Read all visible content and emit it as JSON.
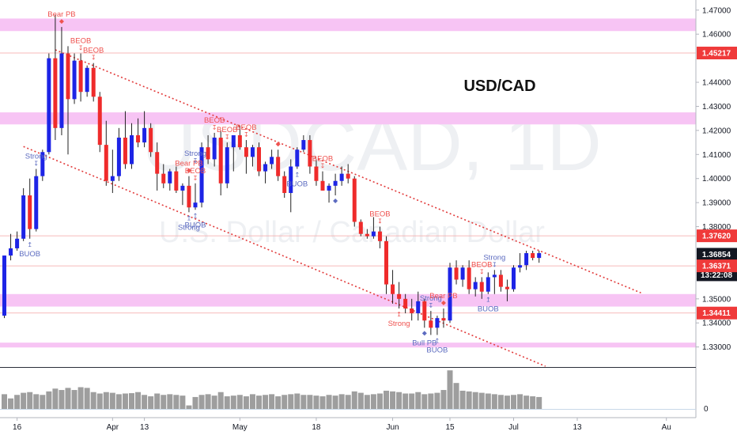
{
  "chart_data": {
    "type": "candlestick",
    "symbol_title": "USD/CAD",
    "watermark_symbol": "USDCAD, 1D",
    "watermark_name": "U.S. Dollar / Canadian Dollar",
    "ylim": [
      1.322,
      1.4742
    ],
    "y_ticks": [
      {
        "value": 1.47,
        "label": "1.47000"
      },
      {
        "value": 1.46,
        "label": "1.46000"
      },
      {
        "value": 1.44,
        "label": "1.44000"
      },
      {
        "value": 1.43,
        "label": "1.43000"
      },
      {
        "value": 1.42,
        "label": "1.42000"
      },
      {
        "value": 1.41,
        "label": "1.41000"
      },
      {
        "value": 1.4,
        "label": "1.40000"
      },
      {
        "value": 1.39,
        "label": "1.39000"
      },
      {
        "value": 1.38,
        "label": "1.38000"
      },
      {
        "value": 1.35,
        "label": "1.35000"
      },
      {
        "value": 1.34,
        "label": "1.34000"
      },
      {
        "value": 1.33,
        "label": "1.33000"
      }
    ],
    "x_ticks": [
      {
        "index": 2,
        "label": "16"
      },
      {
        "index": 17,
        "label": "Apr"
      },
      {
        "index": 22,
        "label": "13"
      },
      {
        "index": 37,
        "label": "May"
      },
      {
        "index": 49,
        "label": "18"
      },
      {
        "index": 61,
        "label": "Jun"
      },
      {
        "index": 70,
        "label": "15"
      },
      {
        "index": 80,
        "label": "Jul"
      },
      {
        "index": 90,
        "label": "13"
      },
      {
        "index": 104,
        "label": "Au"
      }
    ],
    "price_labels": [
      {
        "value": 1.45217,
        "label": "1.45217",
        "style": "red",
        "line": true
      },
      {
        "value": 1.3762,
        "label": "1.37620",
        "style": "red",
        "line": true
      },
      {
        "value": 1.36854,
        "label": "1.36854",
        "style": "black",
        "line": false
      },
      {
        "value": 1.36,
        "label": "13:22:08",
        "style": "black",
        "line": false
      },
      {
        "value": 1.36371,
        "label": "1.36371",
        "style": "red",
        "line": true
      },
      {
        "value": 1.34411,
        "label": "1.34411",
        "style": "red",
        "line": true
      }
    ],
    "zones": [
      {
        "low": 1.4613,
        "high": 1.4665
      },
      {
        "low": 1.4225,
        "high": 1.4275
      },
      {
        "low": 1.3468,
        "high": 1.352
      },
      {
        "low": 1.3298,
        "high": 1.3318
      }
    ],
    "trendlines": [
      {
        "p1": {
          "index": 8,
          "price": 1.4535
        },
        "p2": {
          "index": 100,
          "price": 1.3525
        }
      },
      {
        "p1": {
          "index": 3,
          "price": 1.4133
        },
        "p2": {
          "index": 85,
          "price": 1.322
        }
      }
    ],
    "candles": [
      {
        "o": 1.343,
        "h": 1.368,
        "l": 1.342,
        "c": 1.368
      },
      {
        "o": 1.368,
        "h": 1.377,
        "l": 1.366,
        "c": 1.371
      },
      {
        "o": 1.371,
        "h": 1.378,
        "l": 1.37,
        "c": 1.375
      },
      {
        "o": 1.375,
        "h": 1.396,
        "l": 1.374,
        "c": 1.393
      },
      {
        "o": 1.393,
        "h": 1.4,
        "l": 1.375,
        "c": 1.379
      },
      {
        "o": 1.379,
        "h": 1.404,
        "l": 1.378,
        "c": 1.401
      },
      {
        "o": 1.401,
        "h": 1.412,
        "l": 1.399,
        "c": 1.411
      },
      {
        "o": 1.411,
        "h": 1.452,
        "l": 1.41,
        "c": 1.45
      },
      {
        "o": 1.45,
        "h": 1.468,
        "l": 1.416,
        "c": 1.421
      },
      {
        "o": 1.421,
        "h": 1.463,
        "l": 1.418,
        "c": 1.452
      },
      {
        "o": 1.452,
        "h": 1.455,
        "l": 1.41,
        "c": 1.433
      },
      {
        "o": 1.433,
        "h": 1.452,
        "l": 1.431,
        "c": 1.449
      },
      {
        "o": 1.449,
        "h": 1.452,
        "l": 1.432,
        "c": 1.436
      },
      {
        "o": 1.436,
        "h": 1.447,
        "l": 1.434,
        "c": 1.446
      },
      {
        "o": 1.446,
        "h": 1.448,
        "l": 1.432,
        "c": 1.434
      },
      {
        "o": 1.434,
        "h": 1.436,
        "l": 1.411,
        "c": 1.414
      },
      {
        "o": 1.414,
        "h": 1.424,
        "l": 1.397,
        "c": 1.399
      },
      {
        "o": 1.399,
        "h": 1.412,
        "l": 1.394,
        "c": 1.401
      },
      {
        "o": 1.401,
        "h": 1.421,
        "l": 1.399,
        "c": 1.417
      },
      {
        "o": 1.417,
        "h": 1.428,
        "l": 1.404,
        "c": 1.406
      },
      {
        "o": 1.406,
        "h": 1.423,
        "l": 1.404,
        "c": 1.418
      },
      {
        "o": 1.418,
        "h": 1.425,
        "l": 1.413,
        "c": 1.415
      },
      {
        "o": 1.415,
        "h": 1.428,
        "l": 1.413,
        "c": 1.421
      },
      {
        "o": 1.421,
        "h": 1.423,
        "l": 1.409,
        "c": 1.411
      },
      {
        "o": 1.411,
        "h": 1.415,
        "l": 1.395,
        "c": 1.402
      },
      {
        "o": 1.402,
        "h": 1.406,
        "l": 1.396,
        "c": 1.398
      },
      {
        "o": 1.398,
        "h": 1.404,
        "l": 1.395,
        "c": 1.403
      },
      {
        "o": 1.403,
        "h": 1.405,
        "l": 1.394,
        "c": 1.395
      },
      {
        "o": 1.395,
        "h": 1.398,
        "l": 1.389,
        "c": 1.397
      },
      {
        "o": 1.397,
        "h": 1.401,
        "l": 1.386,
        "c": 1.388
      },
      {
        "o": 1.388,
        "h": 1.398,
        "l": 1.387,
        "c": 1.39
      },
      {
        "o": 1.39,
        "h": 1.415,
        "l": 1.388,
        "c": 1.413
      },
      {
        "o": 1.413,
        "h": 1.418,
        "l": 1.406,
        "c": 1.408
      },
      {
        "o": 1.408,
        "h": 1.419,
        "l": 1.405,
        "c": 1.417
      },
      {
        "o": 1.417,
        "h": 1.42,
        "l": 1.393,
        "c": 1.398
      },
      {
        "o": 1.398,
        "h": 1.415,
        "l": 1.396,
        "c": 1.413
      },
      {
        "o": 1.413,
        "h": 1.418,
        "l": 1.403,
        "c": 1.418
      },
      {
        "o": 1.418,
        "h": 1.422,
        "l": 1.412,
        "c": 1.413
      },
      {
        "o": 1.413,
        "h": 1.416,
        "l": 1.402,
        "c": 1.409
      },
      {
        "o": 1.409,
        "h": 1.414,
        "l": 1.405,
        "c": 1.413
      },
      {
        "o": 1.413,
        "h": 1.415,
        "l": 1.401,
        "c": 1.403
      },
      {
        "o": 1.403,
        "h": 1.407,
        "l": 1.398,
        "c": 1.406
      },
      {
        "o": 1.406,
        "h": 1.412,
        "l": 1.404,
        "c": 1.409
      },
      {
        "o": 1.409,
        "h": 1.412,
        "l": 1.399,
        "c": 1.401
      },
      {
        "o": 1.401,
        "h": 1.403,
        "l": 1.392,
        "c": 1.394
      },
      {
        "o": 1.394,
        "h": 1.408,
        "l": 1.386,
        "c": 1.405
      },
      {
        "o": 1.405,
        "h": 1.413,
        "l": 1.404,
        "c": 1.412
      },
      {
        "o": 1.412,
        "h": 1.418,
        "l": 1.411,
        "c": 1.416
      },
      {
        "o": 1.416,
        "h": 1.418,
        "l": 1.402,
        "c": 1.405
      },
      {
        "o": 1.405,
        "h": 1.408,
        "l": 1.397,
        "c": 1.399
      },
      {
        "o": 1.399,
        "h": 1.403,
        "l": 1.395,
        "c": 1.395
      },
      {
        "o": 1.395,
        "h": 1.398,
        "l": 1.39,
        "c": 1.397
      },
      {
        "o": 1.397,
        "h": 1.402,
        "l": 1.393,
        "c": 1.399
      },
      {
        "o": 1.399,
        "h": 1.405,
        "l": 1.397,
        "c": 1.402
      },
      {
        "o": 1.402,
        "h": 1.406,
        "l": 1.398,
        "c": 1.4
      },
      {
        "o": 1.4,
        "h": 1.401,
        "l": 1.38,
        "c": 1.382
      },
      {
        "o": 1.382,
        "h": 1.383,
        "l": 1.376,
        "c": 1.377
      },
      {
        "o": 1.377,
        "h": 1.379,
        "l": 1.375,
        "c": 1.376
      },
      {
        "o": 1.376,
        "h": 1.384,
        "l": 1.375,
        "c": 1.378
      },
      {
        "o": 1.378,
        "h": 1.38,
        "l": 1.371,
        "c": 1.374
      },
      {
        "o": 1.374,
        "h": 1.376,
        "l": 1.352,
        "c": 1.356
      },
      {
        "o": 1.356,
        "h": 1.362,
        "l": 1.348,
        "c": 1.352
      },
      {
        "o": 1.352,
        "h": 1.357,
        "l": 1.346,
        "c": 1.35
      },
      {
        "o": 1.35,
        "h": 1.352,
        "l": 1.344,
        "c": 1.346
      },
      {
        "o": 1.346,
        "h": 1.35,
        "l": 1.341,
        "c": 1.344
      },
      {
        "o": 1.344,
        "h": 1.353,
        "l": 1.341,
        "c": 1.349
      },
      {
        "o": 1.349,
        "h": 1.35,
        "l": 1.338,
        "c": 1.341
      },
      {
        "o": 1.341,
        "h": 1.345,
        "l": 1.335,
        "c": 1.338
      },
      {
        "o": 1.338,
        "h": 1.343,
        "l": 1.335,
        "c": 1.342
      },
      {
        "o": 1.342,
        "h": 1.346,
        "l": 1.338,
        "c": 1.341
      },
      {
        "o": 1.341,
        "h": 1.365,
        "l": 1.34,
        "c": 1.363
      },
      {
        "o": 1.363,
        "h": 1.366,
        "l": 1.356,
        "c": 1.358
      },
      {
        "o": 1.358,
        "h": 1.364,
        "l": 1.355,
        "c": 1.363
      },
      {
        "o": 1.363,
        "h": 1.366,
        "l": 1.352,
        "c": 1.354
      },
      {
        "o": 1.354,
        "h": 1.359,
        "l": 1.351,
        "c": 1.357
      },
      {
        "o": 1.357,
        "h": 1.359,
        "l": 1.35,
        "c": 1.353
      },
      {
        "o": 1.353,
        "h": 1.361,
        "l": 1.352,
        "c": 1.359
      },
      {
        "o": 1.359,
        "h": 1.362,
        "l": 1.352,
        "c": 1.36
      },
      {
        "o": 1.36,
        "h": 1.362,
        "l": 1.353,
        "c": 1.355
      },
      {
        "o": 1.355,
        "h": 1.358,
        "l": 1.349,
        "c": 1.354
      },
      {
        "o": 1.354,
        "h": 1.364,
        "l": 1.353,
        "c": 1.363
      },
      {
        "o": 1.363,
        "h": 1.369,
        "l": 1.361,
        "c": 1.364
      },
      {
        "o": 1.364,
        "h": 1.37,
        "l": 1.362,
        "c": 1.369
      },
      {
        "o": 1.369,
        "h": 1.37,
        "l": 1.366,
        "c": 1.367
      },
      {
        "o": 1.367,
        "h": 1.37,
        "l": 1.365,
        "c": 1.369
      }
    ],
    "volume_ylim": [
      0,
      115
    ],
    "volume_tick_label": "0",
    "volumes": [
      42,
      30,
      40,
      46,
      48,
      42,
      40,
      50,
      58,
      54,
      60,
      54,
      62,
      60,
      48,
      44,
      48,
      46,
      42,
      44,
      45,
      48,
      40,
      36,
      44,
      40,
      42,
      40,
      38,
      10,
      34,
      40,
      42,
      38,
      48,
      36,
      38,
      40,
      36,
      42,
      38,
      40,
      42,
      36,
      40,
      42,
      44,
      40,
      40,
      38,
      36,
      40,
      38,
      42,
      40,
      50,
      46,
      40,
      42,
      44,
      52,
      50,
      48,
      44,
      44,
      48,
      42,
      44,
      46,
      54,
      110,
      74,
      52,
      50,
      48,
      46,
      44,
      42,
      40,
      38,
      40,
      42,
      38,
      36,
      34
    ],
    "annotations": [
      {
        "index": 9,
        "text": "Bear PB",
        "color": "#ef5350",
        "position": "above",
        "mark": "diamond"
      },
      {
        "index": 12,
        "text": "BEOB",
        "color": "#ef5350",
        "position": "above",
        "mark": "arrow"
      },
      {
        "index": 14,
        "text": "BEOB",
        "color": "#ef5350",
        "position": "above",
        "mark": "arrow"
      },
      {
        "index": 5,
        "text": "Strong",
        "color": "#5c6bc0",
        "position": "above",
        "mark": "arrow"
      },
      {
        "index": 4,
        "text": "BUOB",
        "color": "#5c6bc0",
        "position": "below",
        "mark": "arrow"
      },
      {
        "index": 29,
        "text": "Bear PB",
        "color": "#ef5350",
        "position": "above",
        "mark": "diamond"
      },
      {
        "index": 30,
        "text": "BEOB",
        "color": "#ef5350",
        "position": "above",
        "mark": "arrow"
      },
      {
        "index": 33,
        "text": "BEOB",
        "color": "#ef5350",
        "position": "above",
        "mark": "arrow"
      },
      {
        "index": 35,
        "text": "BEOB",
        "color": "#ef5350",
        "position": "above",
        "mark": "arrow"
      },
      {
        "index": 38,
        "text": "BEOB",
        "color": "#ef5350",
        "position": "above",
        "mark": "arrow"
      },
      {
        "index": 30,
        "text": "Strong",
        "color": "#5c6bc0",
        "position": "above",
        "mark": "arrow"
      },
      {
        "index": 29,
        "text": "Strong",
        "color": "#5c6bc0",
        "position": "below",
        "mark": "arrow"
      },
      {
        "index": 30,
        "text": "BUOB",
        "color": "#5c6bc0",
        "position": "below",
        "mark": "arrow"
      },
      {
        "index": 43,
        "text": "",
        "color": "#ef5350",
        "position": "above",
        "mark": "diamond"
      },
      {
        "index": 50,
        "text": "BEOB",
        "color": "#ef5350",
        "position": "above",
        "mark": "arrow"
      },
      {
        "index": 46,
        "text": "BUOB",
        "color": "#5c6bc0",
        "position": "below",
        "mark": "arrow"
      },
      {
        "index": 52,
        "text": "",
        "color": "#5c6bc0",
        "position": "below",
        "mark": "diamond"
      },
      {
        "index": 59,
        "text": "BEOB",
        "color": "#ef5350",
        "position": "above",
        "mark": "arrow"
      },
      {
        "index": 62,
        "text": "Strong",
        "color": "#ef5350",
        "position": "below",
        "mark": "arrow"
      },
      {
        "index": 67,
        "text": "Strong",
        "color": "#5c6bc0",
        "position": "above",
        "mark": "arrow"
      },
      {
        "index": 69,
        "text": "Bear PB",
        "color": "#ef5350",
        "position": "above",
        "mark": "diamond"
      },
      {
        "index": 68,
        "text": "BUOB",
        "color": "#5c6bc0",
        "position": "below",
        "mark": "arrow"
      },
      {
        "index": 66,
        "text": "Bull PB",
        "color": "#5c6bc0",
        "position": "below",
        "mark": "diamond"
      },
      {
        "index": 75,
        "text": "BEOB",
        "color": "#ef5350",
        "position": "above",
        "mark": "arrow"
      },
      {
        "index": 77,
        "text": "Strong",
        "color": "#5c6bc0",
        "position": "above",
        "mark": "arrow"
      },
      {
        "index": 76,
        "text": "BUOB",
        "color": "#5c6bc0",
        "position": "below",
        "mark": "arrow"
      }
    ],
    "colors": {
      "up": "#1d24e6",
      "down": "#ef2b2b",
      "zone": "#f7c4f4",
      "trendline": "#e23b3b",
      "volume": "#9e9e9e",
      "axis_text": "#131722",
      "price_label_red": "#ef3a3a",
      "price_label_black": "#131722",
      "watermark": "#eef0f3"
    }
  }
}
